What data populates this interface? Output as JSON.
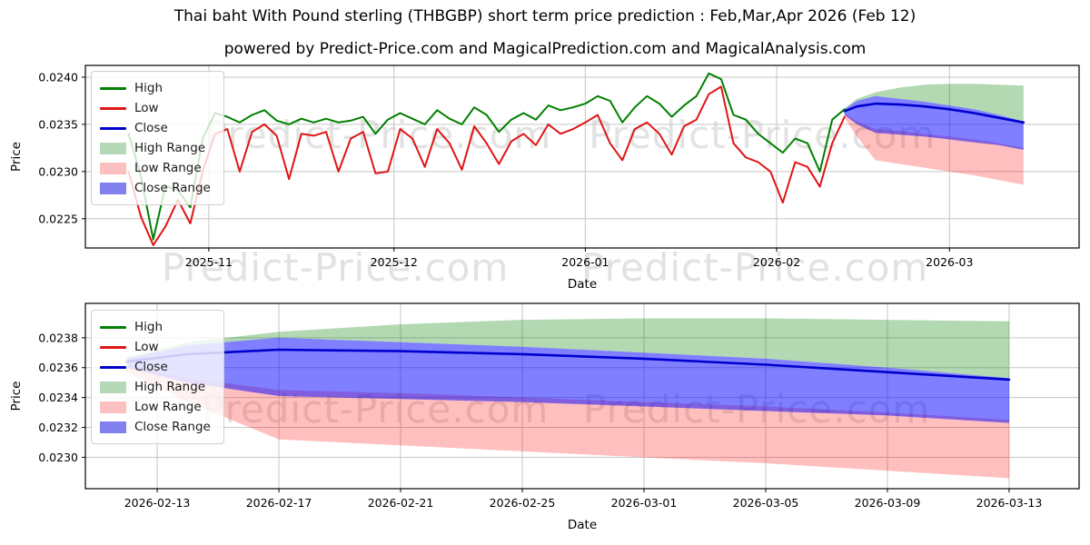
{
  "title": "Thai baht With Pound sterling (THBGBP) short term price prediction : Feb,Mar,Apr 2026 (Feb 12)",
  "subtitle": "powered by Predict-Price.com and MagicalPrediction.com and MagicalAnalysis.com",
  "watermark": {
    "text": "Predict-Price.com",
    "color": "#e2e2e2"
  },
  "palette": {
    "high_line": "#008000",
    "low_line": "#e01515",
    "close_line": "#0000cd",
    "high_range_fill": "rgba(0,128,0,0.30)",
    "low_range_fill": "rgba(255,0,0,0.25)",
    "close_range_fill": "rgba(0,0,255,0.50)",
    "grid": "#c6c6c6",
    "spine": "#000000",
    "tick_text": "#000000"
  },
  "legend": {
    "items": [
      {
        "label": "High",
        "swatch": "line",
        "color": "#008000"
      },
      {
        "label": "Low",
        "swatch": "line",
        "color": "#e01515"
      },
      {
        "label": "Close",
        "swatch": "line",
        "color": "#0000cd"
      },
      {
        "label": "High Range",
        "swatch": "patch",
        "color": "#b5d9b8"
      },
      {
        "label": "Low Range",
        "swatch": "patch",
        "color": "#fbc0c0"
      },
      {
        "label": "Close Range",
        "swatch": "patch",
        "color": "#8080ee"
      }
    ]
  },
  "chart_data": [
    {
      "name": "history_with_forecast",
      "type": "line",
      "xlabel": "Date",
      "ylabel": "Price",
      "y_ticks": [
        0.0225,
        0.023,
        0.0235,
        0.024
      ],
      "ylim": [
        0.02219,
        0.024125
      ],
      "x_ticks": [
        {
          "label": "2025-11",
          "day": 13
        },
        {
          "label": "2025-12",
          "day": 43
        },
        {
          "label": "2026-01",
          "day": 74
        },
        {
          "label": "2026-02",
          "day": 105
        },
        {
          "label": "2026-03",
          "day": 133
        }
      ],
      "xlim_days": [
        -7,
        154
      ],
      "history": {
        "start_date": "2025-10-19",
        "step_days": 2,
        "high": [
          0.0234,
          0.02295,
          0.02228,
          0.02285,
          0.0228,
          0.02262,
          0.02335,
          0.02362,
          0.02358,
          0.02352,
          0.0236,
          0.02365,
          0.02354,
          0.0235,
          0.02356,
          0.02352,
          0.02356,
          0.02352,
          0.02354,
          0.02358,
          0.0234,
          0.02355,
          0.02362,
          0.02356,
          0.0235,
          0.02365,
          0.02356,
          0.0235,
          0.02368,
          0.0236,
          0.02342,
          0.02355,
          0.02362,
          0.02355,
          0.0237,
          0.02365,
          0.02368,
          0.02372,
          0.0238,
          0.02375,
          0.02352,
          0.02368,
          0.0238,
          0.02372,
          0.02358,
          0.0237,
          0.0238,
          0.02404,
          0.02398,
          0.0236,
          0.02355,
          0.0234,
          0.0233,
          0.0232,
          0.02335,
          0.0233,
          0.023,
          0.02355,
          0.02366
        ],
        "low": [
          0.023,
          0.02252,
          0.02222,
          0.02242,
          0.0227,
          0.02245,
          0.023,
          0.0234,
          0.02345,
          0.023,
          0.02342,
          0.0235,
          0.02338,
          0.02292,
          0.0234,
          0.02338,
          0.02342,
          0.023,
          0.02335,
          0.02342,
          0.02298,
          0.023,
          0.02345,
          0.02335,
          0.02305,
          0.02345,
          0.0233,
          0.02302,
          0.02348,
          0.0233,
          0.02308,
          0.02332,
          0.0234,
          0.02328,
          0.0235,
          0.0234,
          0.02345,
          0.02352,
          0.0236,
          0.0233,
          0.02312,
          0.02345,
          0.02352,
          0.0234,
          0.02318,
          0.02348,
          0.02355,
          0.02382,
          0.0239,
          0.0233,
          0.02315,
          0.0231,
          0.023,
          0.02267,
          0.0231,
          0.02305,
          0.02284,
          0.0233,
          0.02358
        ]
      }
    },
    {
      "name": "forecast_detail",
      "type": "area",
      "xlabel": "Date",
      "ylabel": "Price",
      "y_ticks": [
        0.023,
        0.0232,
        0.0234,
        0.0236,
        0.0238
      ],
      "ylim": [
        0.02279,
        0.02403
      ],
      "x_ticks": [
        {
          "label": "2026-02-13",
          "day": 117
        },
        {
          "label": "2026-02-17",
          "day": 121
        },
        {
          "label": "2026-02-21",
          "day": 125
        },
        {
          "label": "2026-02-25",
          "day": 129
        },
        {
          "label": "2026-03-01",
          "day": 133
        },
        {
          "label": "2026-03-05",
          "day": 137
        },
        {
          "label": "2026-03-09",
          "day": 141
        },
        {
          "label": "2026-03-13",
          "day": 145
        }
      ],
      "xlim_days": [
        114.64,
        147.3
      ]
    }
  ],
  "prediction": {
    "dates": [
      "2026-02-12",
      "2026-02-14",
      "2026-02-17",
      "2026-02-21",
      "2026-02-25",
      "2026-03-01",
      "2026-03-05",
      "2026-03-09",
      "2026-03-13"
    ],
    "days": [
      116,
      118,
      121,
      125,
      129,
      133,
      137,
      141,
      145
    ],
    "close": [
      0.02364,
      0.02369,
      0.02372,
      0.02371,
      0.02369,
      0.02366,
      0.02362,
      0.02357,
      0.02352
    ],
    "high_upper": [
      0.02367,
      0.02377,
      0.02384,
      0.02389,
      0.02392,
      0.02393,
      0.02393,
      0.02392,
      0.02391
    ],
    "close_upper": [
      0.02366,
      0.02375,
      0.0238,
      0.02377,
      0.02374,
      0.0237,
      0.02366,
      0.0236,
      0.02353
    ],
    "close_lower": [
      0.0236,
      0.0235,
      0.02341,
      0.02339,
      0.02337,
      0.02334,
      0.02331,
      0.02328,
      0.02323
    ],
    "pink_upper": [
      0.02362,
      0.02353,
      0.02345,
      0.02343,
      0.0234,
      0.02337,
      0.02334,
      0.0233,
      0.02325
    ],
    "low_lower": [
      0.02357,
      0.02337,
      0.02312,
      0.02308,
      0.02304,
      0.023,
      0.02296,
      0.02291,
      0.02286
    ]
  }
}
